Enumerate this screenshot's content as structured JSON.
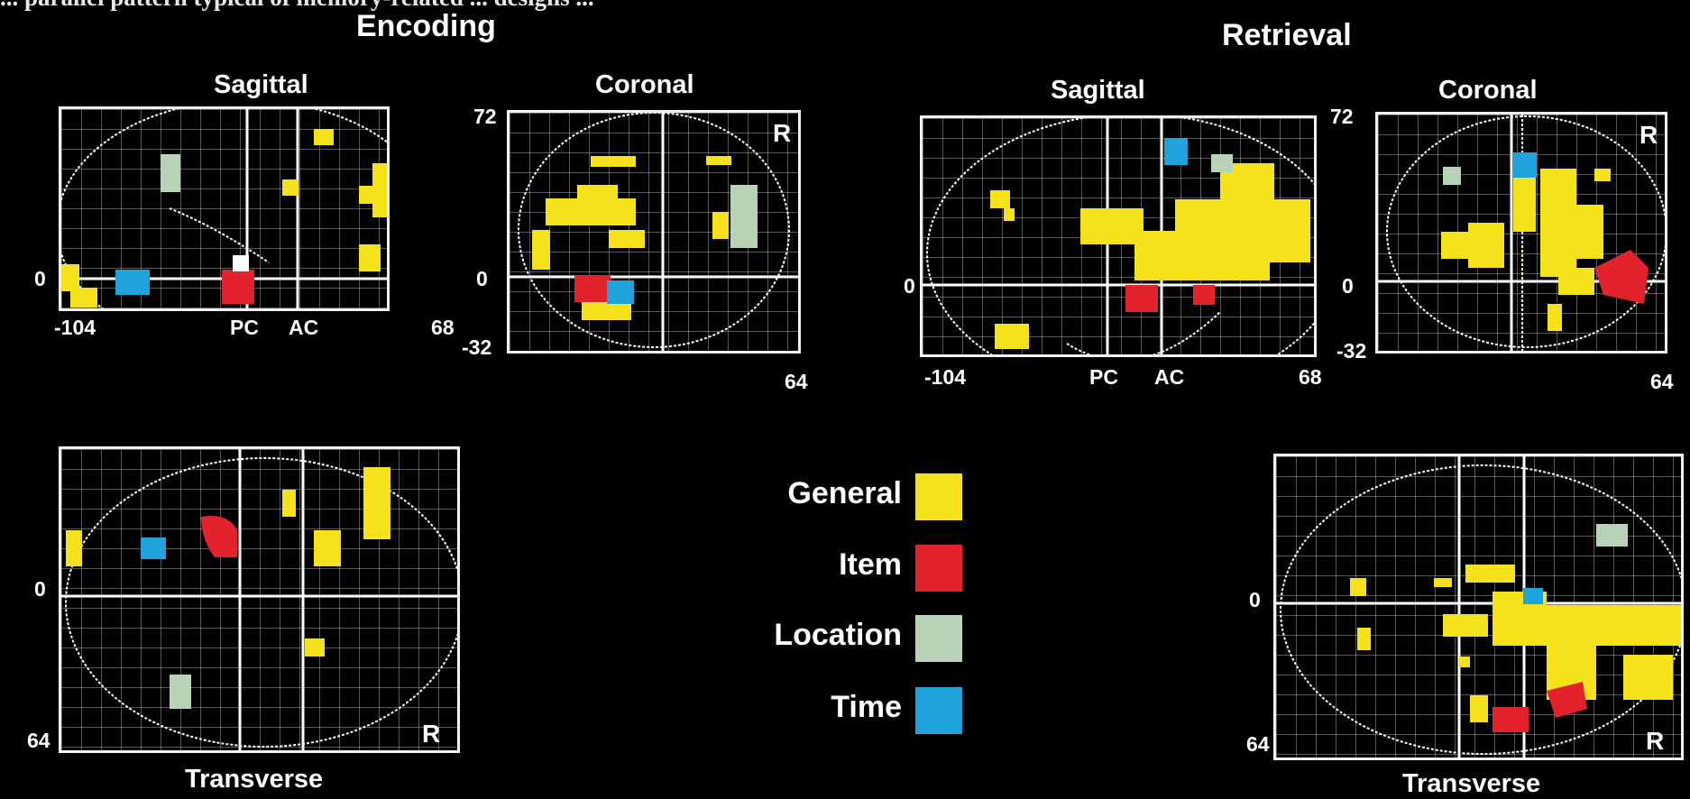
{
  "top_caption": "... parallel pattern typical of memory-related ... designs ...",
  "encoding": {
    "heading": "Encoding",
    "sagittal": {
      "label": "Sagittal",
      "tick_left": "-104",
      "tick_pc": "PC",
      "tick_ac": "AC",
      "tick_right": "68",
      "y_zero": "0"
    },
    "coronal": {
      "label": "Coronal",
      "y_top": "72",
      "y_zero": "0",
      "y_bottom": "-32",
      "x_right": "64",
      "side": "R"
    },
    "transverse": {
      "label": "Transverse",
      "y_zero": "0",
      "y_bottom": "64",
      "side": "R"
    }
  },
  "retrieval": {
    "heading": "Retrieval",
    "sagittal": {
      "label": "Sagittal",
      "tick_left": "-104",
      "tick_pc": "PC",
      "tick_ac": "AC",
      "tick_right": "68",
      "y_zero": "0"
    },
    "coronal": {
      "label": "Coronal",
      "y_top": "72",
      "y_zero": "0",
      "y_bottom": "-32",
      "x_right": "64",
      "side": "R"
    },
    "transverse": {
      "label": "Transverse",
      "y_zero": "0",
      "y_bottom": "64",
      "side": "R"
    }
  },
  "legend": [
    {
      "label": "General",
      "color": "#f5e21b"
    },
    {
      "label": "Item",
      "color": "#e3232b"
    },
    {
      "label": "Location",
      "color": "#b9d3b8"
    },
    {
      "label": "Time",
      "color": "#1fa3dc"
    }
  ],
  "colors": {
    "general": "#f5e21b",
    "item": "#e3232b",
    "location": "#b9d3b8",
    "time": "#1fa3dc"
  }
}
